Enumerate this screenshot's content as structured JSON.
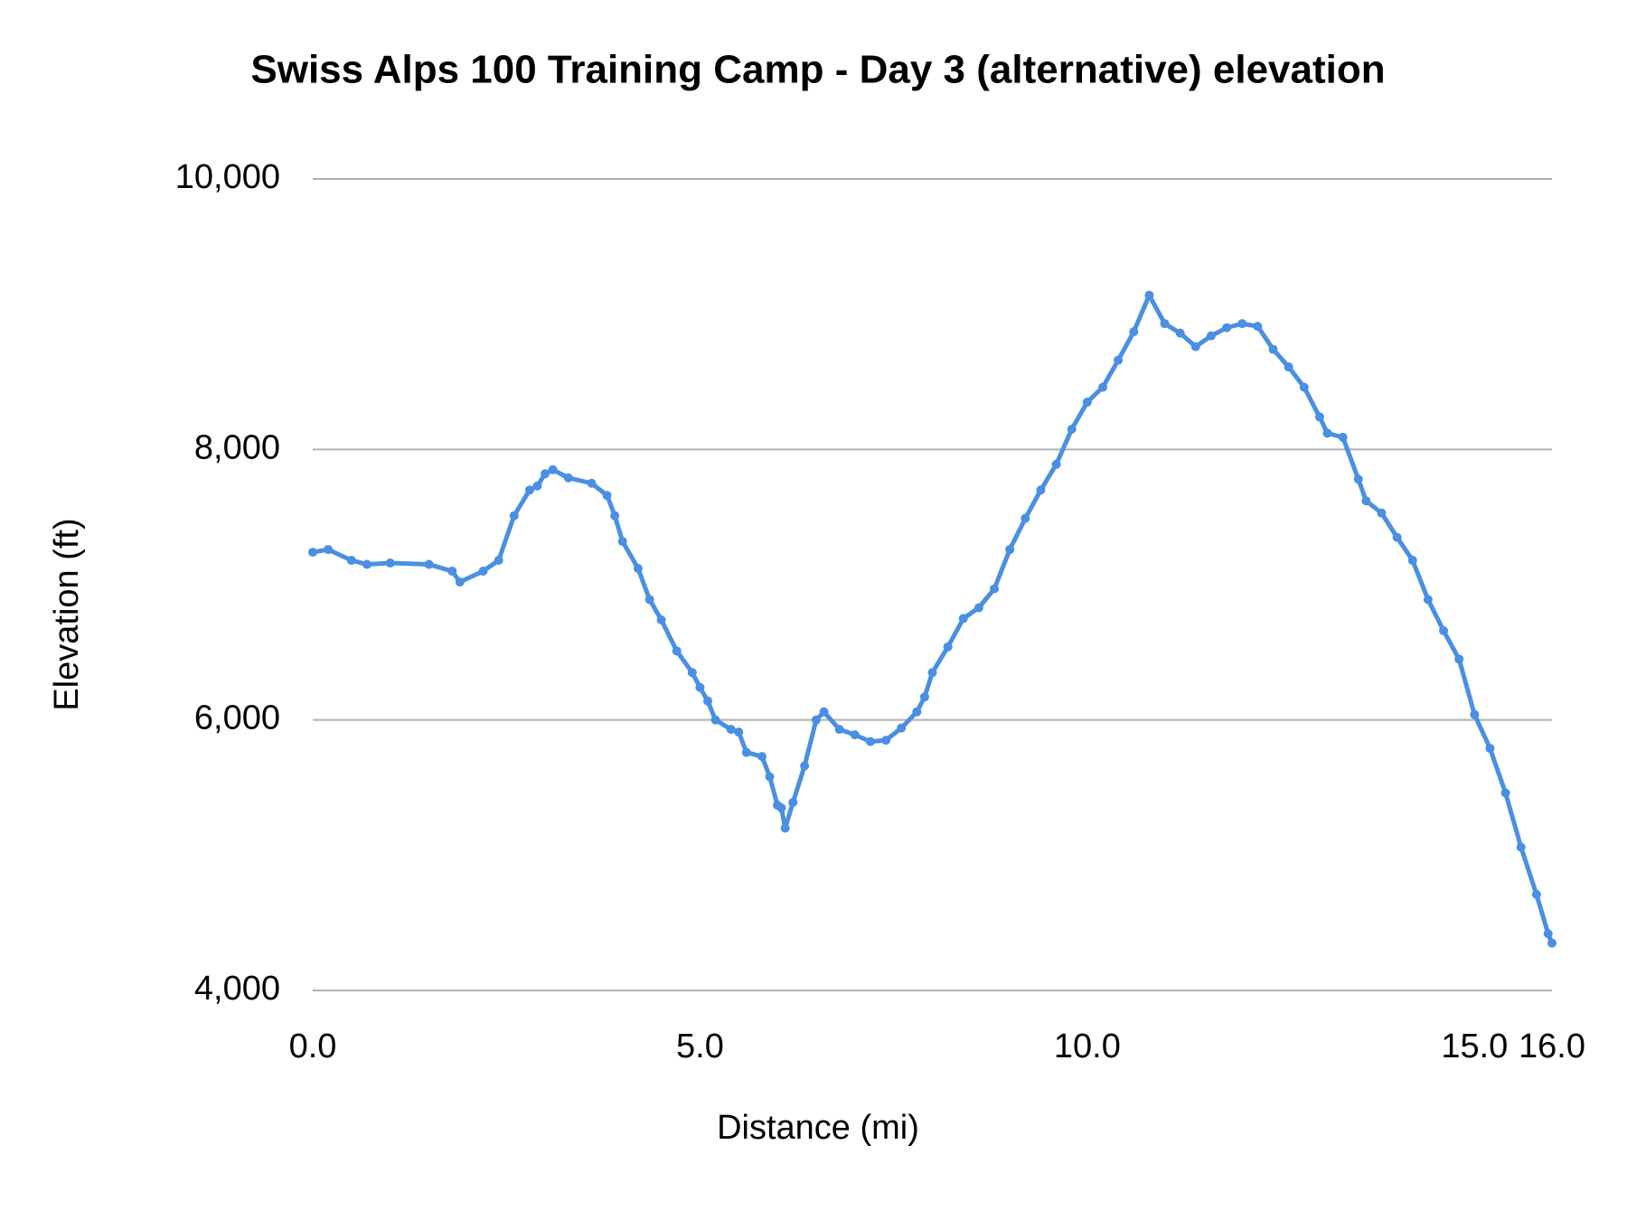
{
  "chart_data": {
    "type": "line",
    "title": "Swiss Alps 100 Training Camp - Day 3 (alternative) elevation",
    "x_label": "Distance (mi)",
    "y_label": "Elevation (ft)",
    "xlim": [
      0,
      16
    ],
    "ylim": [
      4000,
      10000
    ],
    "xticks": [
      {
        "value": 0,
        "label": "0.0"
      },
      {
        "value": 5,
        "label": "5.0"
      },
      {
        "value": 10,
        "label": "10.0"
      },
      {
        "value": 15,
        "label": "15.0"
      },
      {
        "value": 16,
        "label": "16.0"
      }
    ],
    "yticks": [
      {
        "value": 4000,
        "label": "4,000"
      },
      {
        "value": 6000,
        "label": "6,000"
      },
      {
        "value": 8000,
        "label": "8,000"
      },
      {
        "value": 10000,
        "label": "10,000"
      }
    ],
    "grid": true,
    "series": [
      {
        "name": "Elevation (ft)",
        "color": "#4a8fe3",
        "x": [
          0,
          0.2,
          0.5,
          0.7,
          1.0,
          1.5,
          1.8,
          1.9,
          2.2,
          2.4,
          2.6,
          2.8,
          2.9,
          3.0,
          3.1,
          3.3,
          3.6,
          3.8,
          3.9,
          4.0,
          4.2,
          4.35,
          4.5,
          4.7,
          4.9,
          5.0,
          5.1,
          5.2,
          5.4,
          5.5,
          5.6,
          5.8,
          5.9,
          6.0,
          6.05,
          6.1,
          6.2,
          6.35,
          6.5,
          6.6,
          6.8,
          7.0,
          7.2,
          7.4,
          7.6,
          7.8,
          7.9,
          8.0,
          8.2,
          8.4,
          8.6,
          8.8,
          9.0,
          9.2,
          9.4,
          9.6,
          9.8,
          10.0,
          10.2,
          10.4,
          10.6,
          10.8,
          11.0,
          11.2,
          11.4,
          11.6,
          11.8,
          12.0,
          12.2,
          12.4,
          12.6,
          12.8,
          13.0,
          13.1,
          13.3,
          13.5,
          13.6,
          13.8,
          14.0,
          14.2,
          14.4,
          14.6,
          14.8,
          15.0,
          15.2,
          15.4,
          15.6,
          15.8,
          15.95,
          16.0
        ],
        "values": [
          7240,
          7260,
          7180,
          7150,
          7160,
          7150,
          7100,
          7020,
          7100,
          7180,
          7510,
          7700,
          7730,
          7820,
          7850,
          7790,
          7750,
          7660,
          7510,
          7320,
          7120,
          6890,
          6740,
          6510,
          6350,
          6240,
          6140,
          6000,
          5930,
          5910,
          5760,
          5730,
          5580,
          5370,
          5350,
          5200,
          5390,
          5660,
          6000,
          6060,
          5930,
          5890,
          5840,
          5850,
          5940,
          6060,
          6170,
          6350,
          6540,
          6750,
          6830,
          6970,
          7260,
          7490,
          7700,
          7890,
          8150,
          8350,
          8460,
          8660,
          8870,
          9140,
          8930,
          8860,
          8760,
          8840,
          8900,
          8930,
          8910,
          8740,
          8610,
          8460,
          8240,
          8120,
          8090,
          7780,
          7620,
          7530,
          7350,
          7180,
          6890,
          6660,
          6450,
          6040,
          5790,
          5460,
          5060,
          4710,
          4420,
          4350
        ]
      }
    ]
  }
}
